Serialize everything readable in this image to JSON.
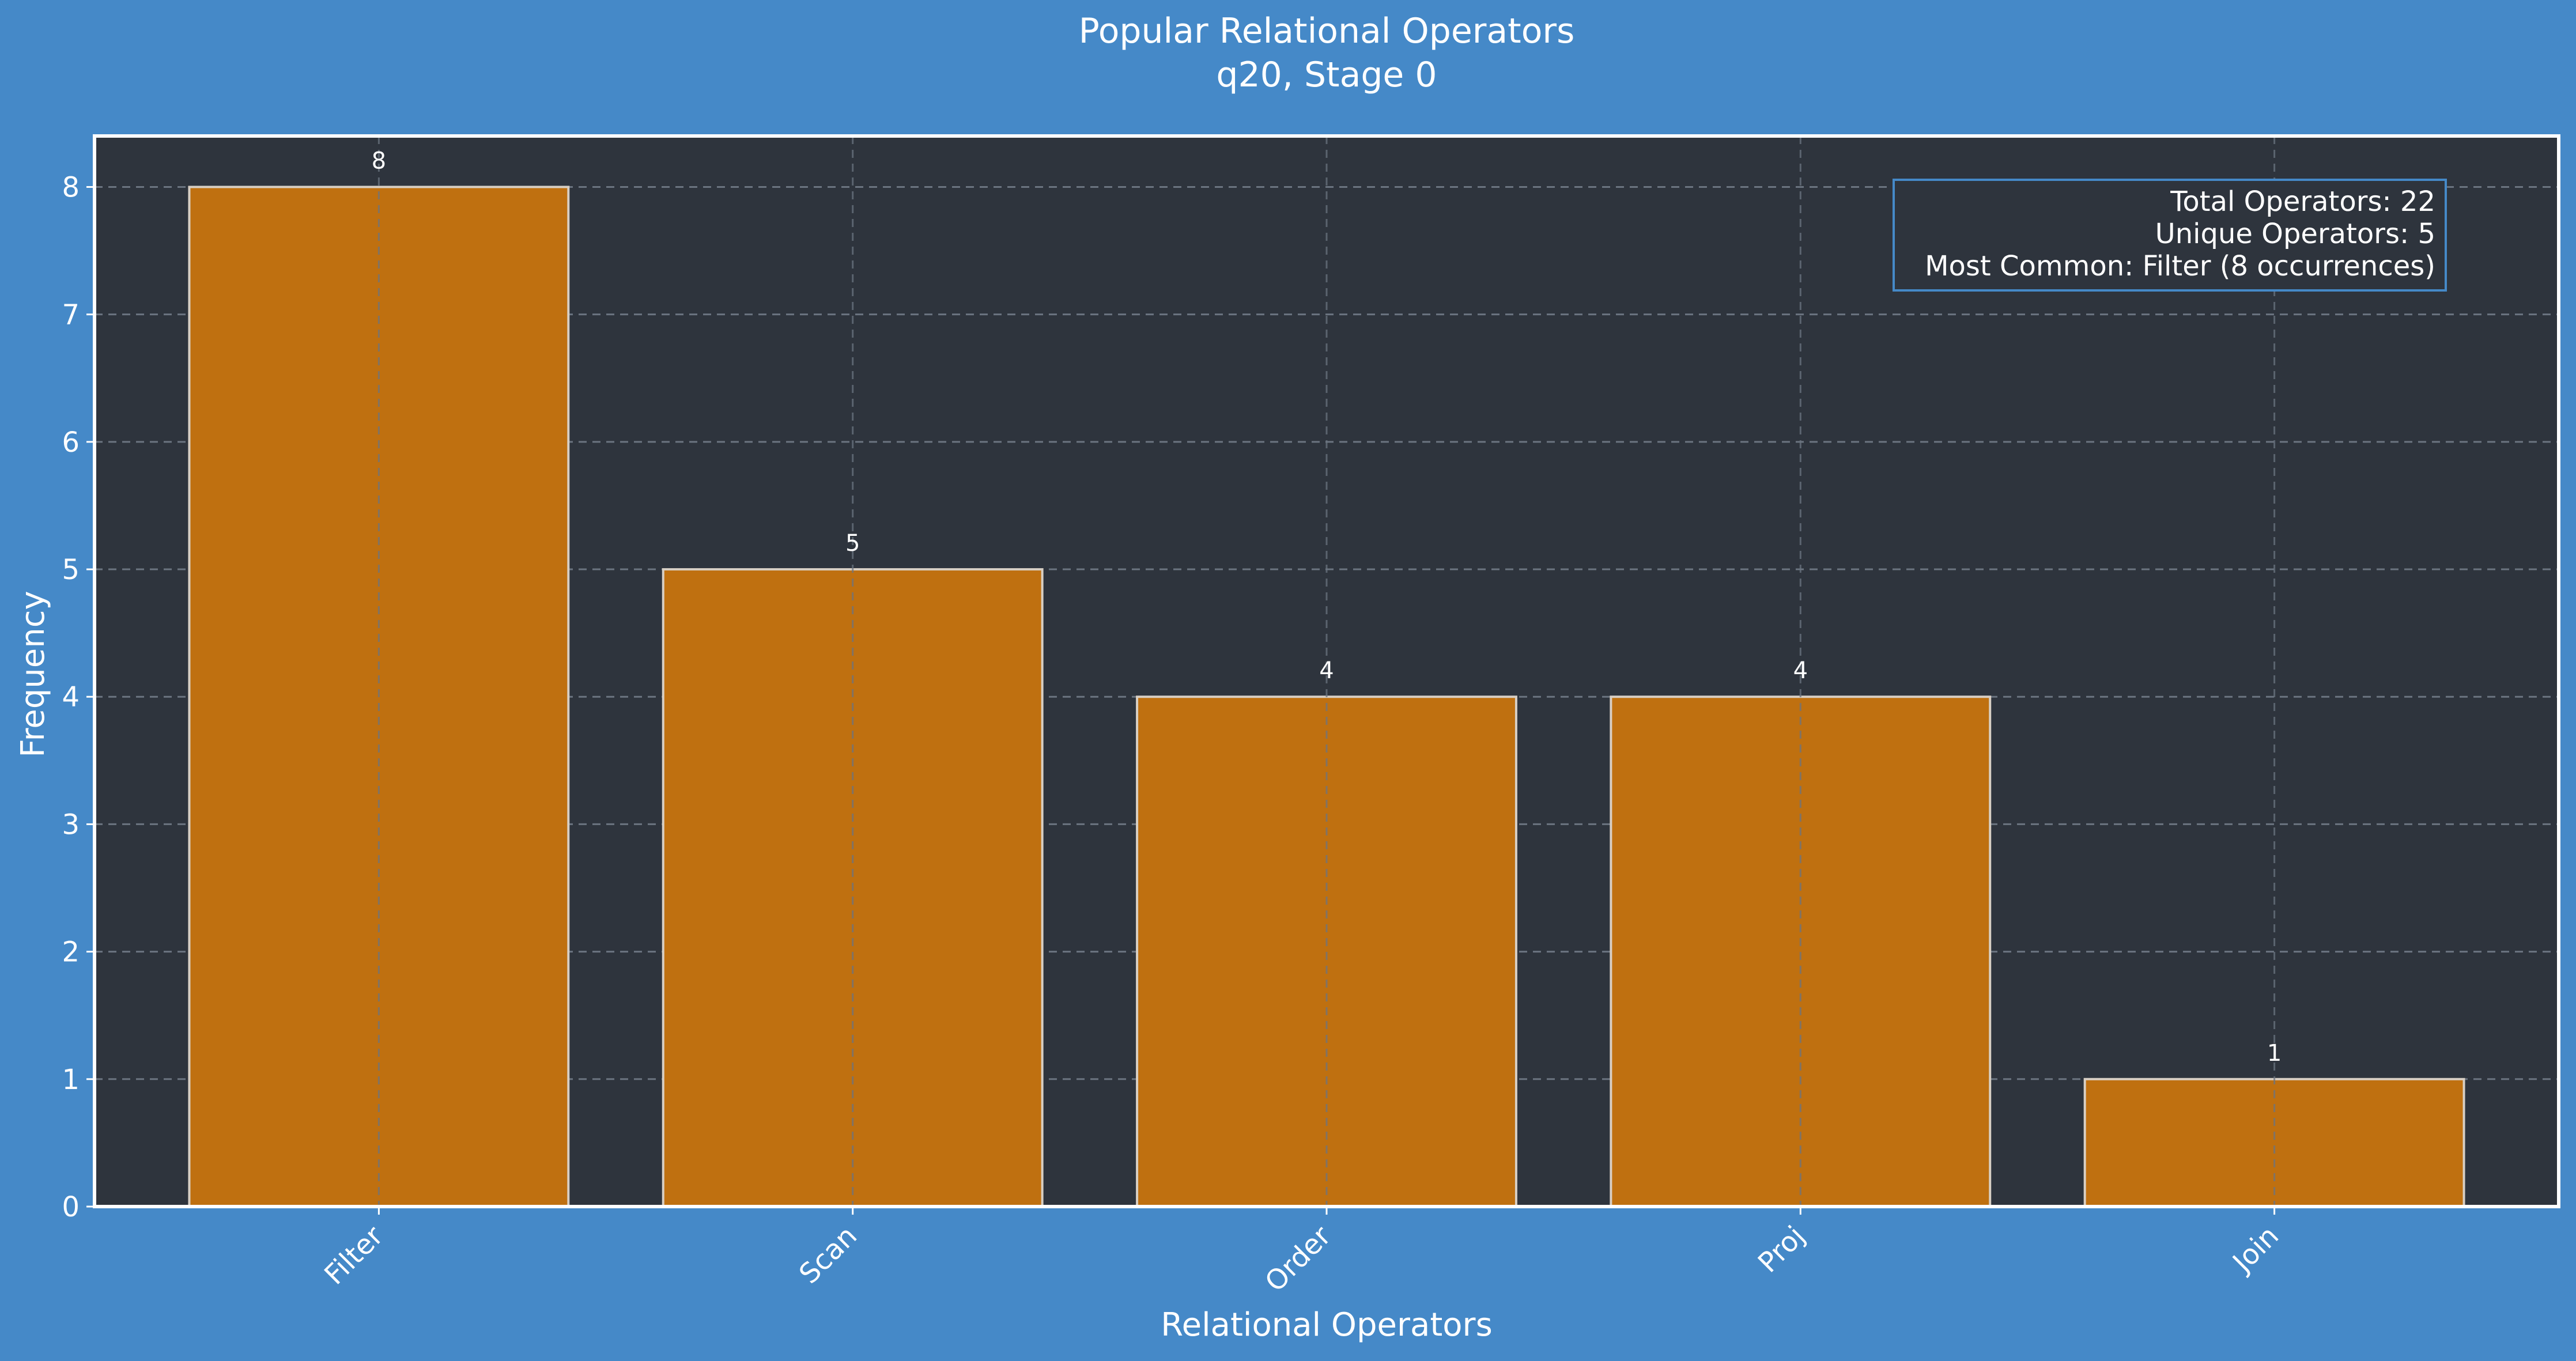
{
  "chart_data": {
    "type": "bar",
    "title": "Popular Relational Operators",
    "subtitle": "q20, Stage 0",
    "xlabel": "Relational Operators",
    "ylabel": "Frequency",
    "categories": [
      "Filter",
      "Scan",
      "Order",
      "Proj",
      "Join"
    ],
    "values": [
      8,
      5,
      4,
      4,
      1
    ],
    "ylim": [
      0,
      8.4
    ],
    "yticks": [
      0,
      1,
      2,
      3,
      4,
      5,
      6,
      7,
      8
    ],
    "grid": true,
    "stats_box": {
      "position": "top-right",
      "lines": [
        "Total Operators: 22",
        "Unique Operators: 5",
        "Most Common: Filter (8 occurrences)"
      ]
    },
    "colors": {
      "background": "#4589c8",
      "plot_background": "#2e343d",
      "bar_fill": "#bf7010",
      "bar_edge": "#d8cfc4",
      "text": "#ffffff",
      "grid": "#6b7480",
      "stats_border": "#4589c8"
    }
  }
}
